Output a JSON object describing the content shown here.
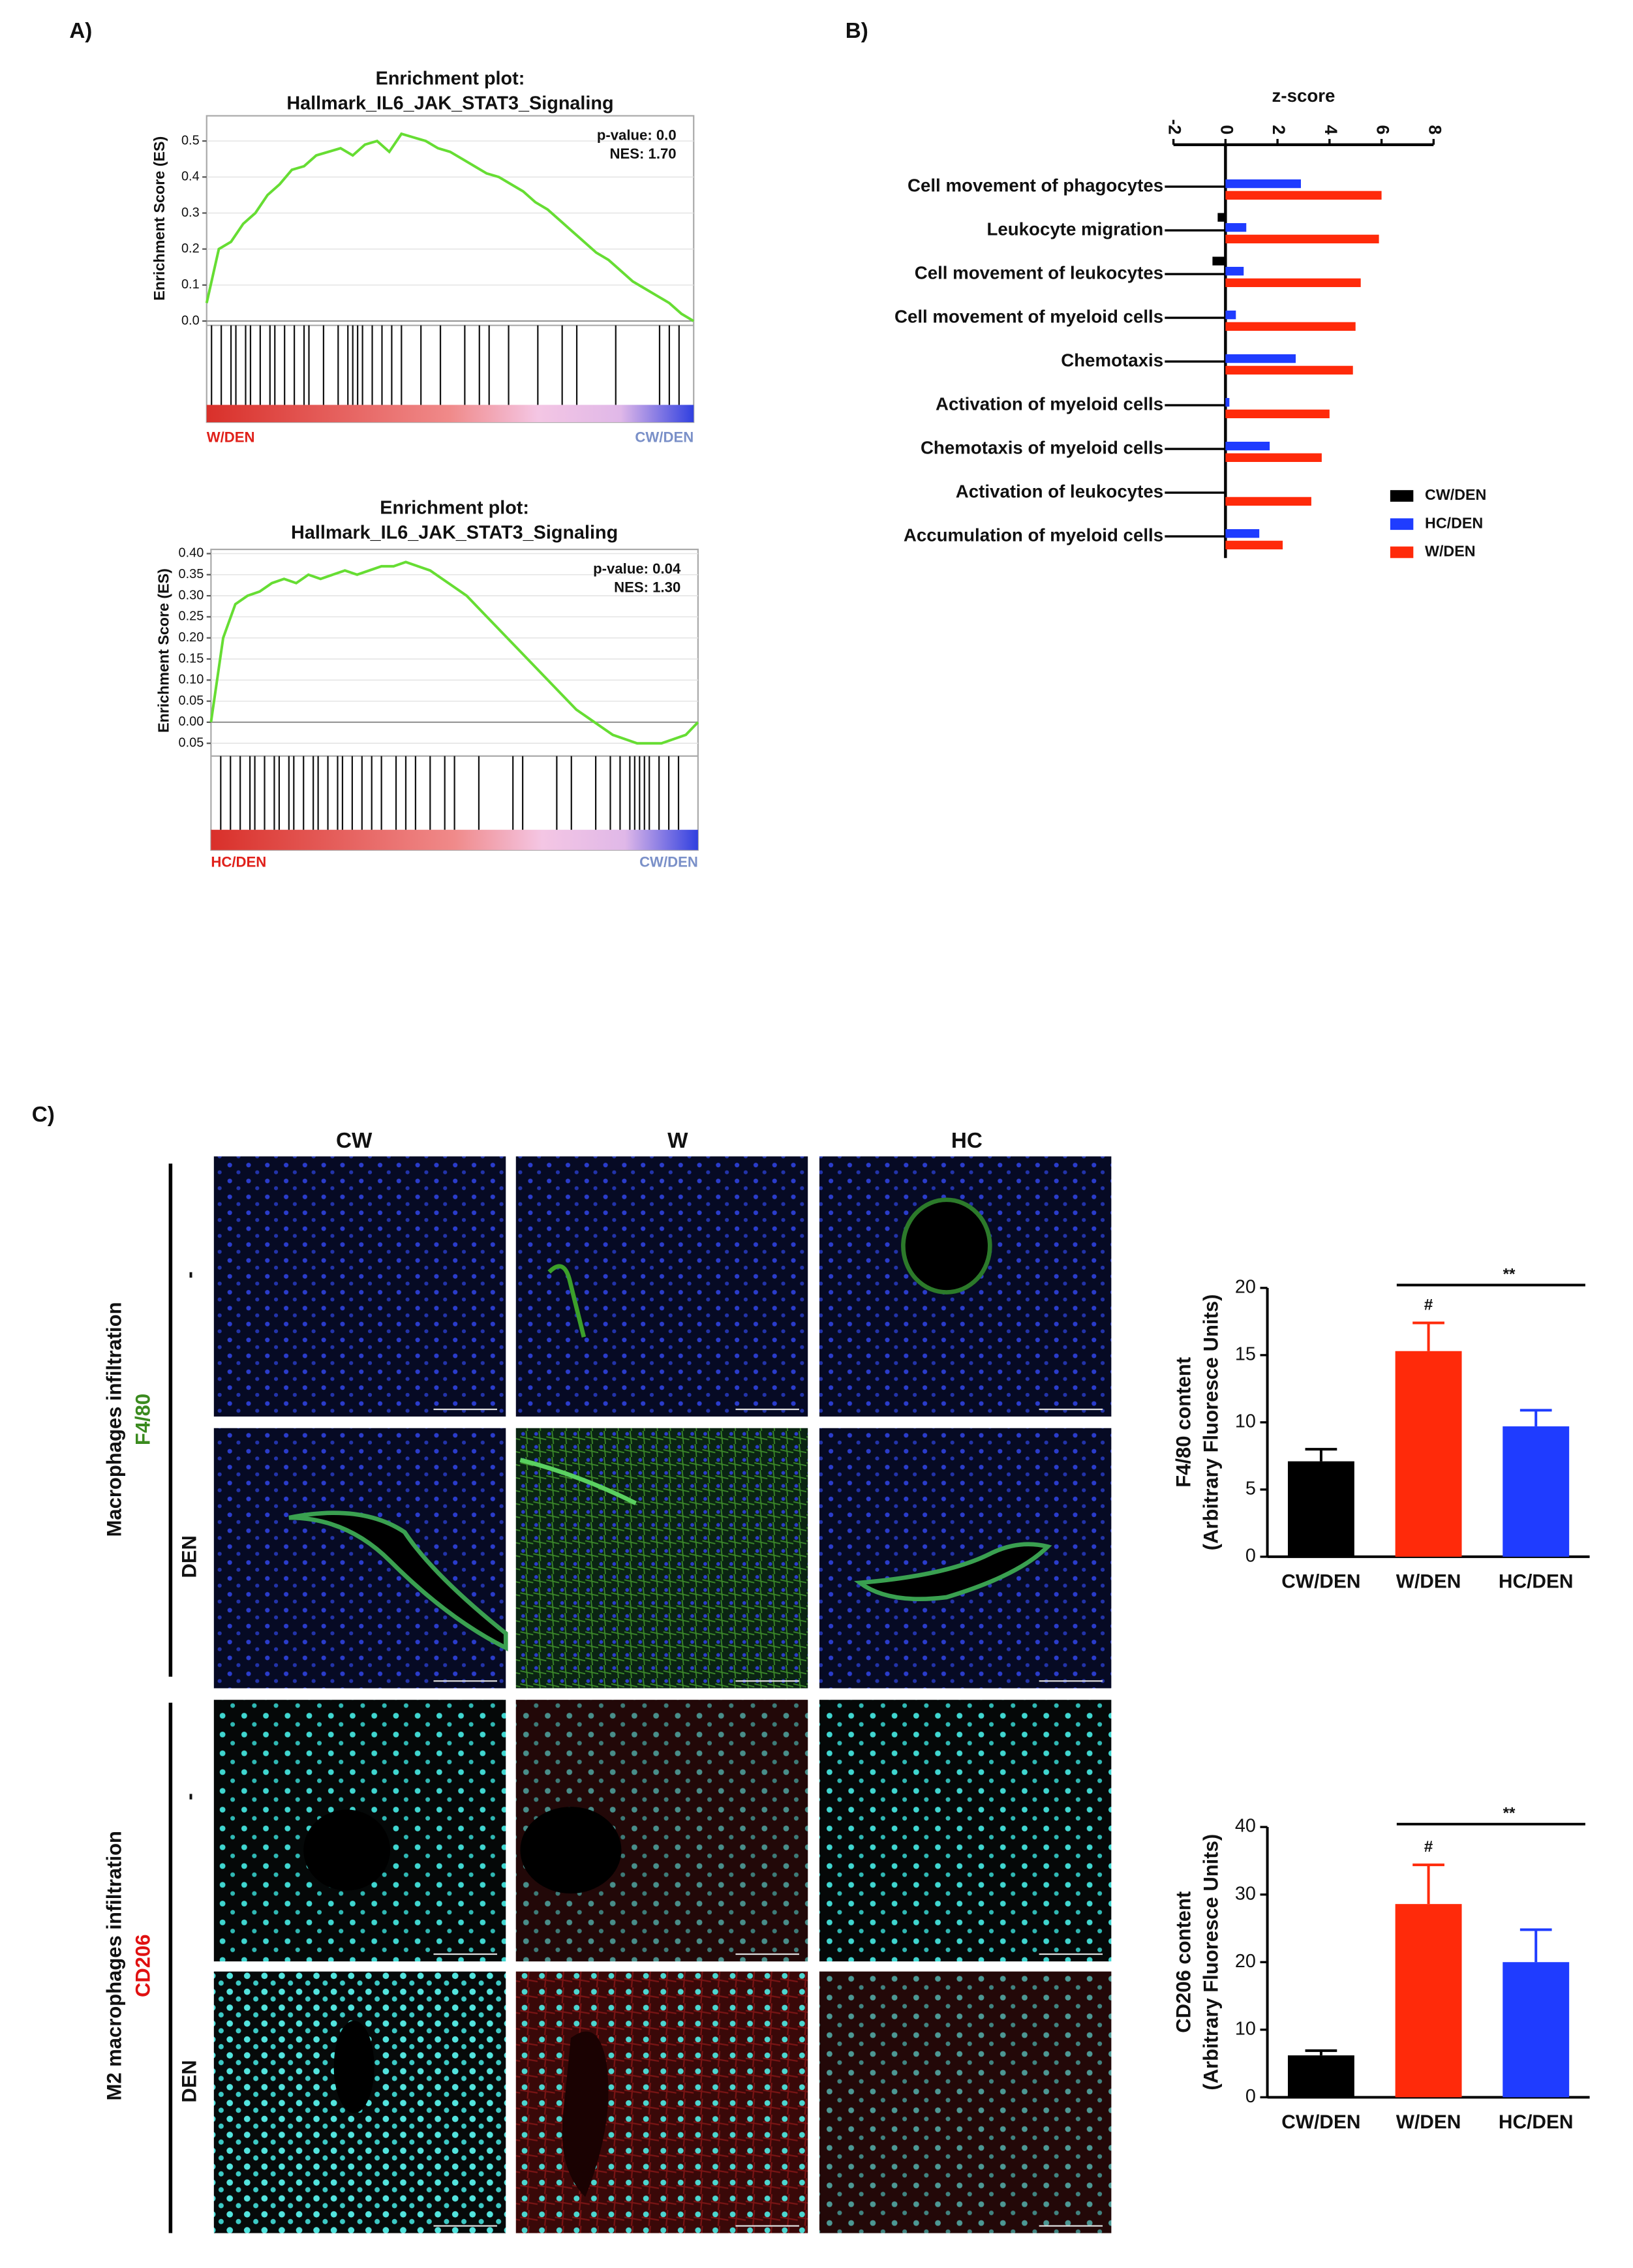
{
  "panels": {
    "a": "A)",
    "b": "B)",
    "c": "C)"
  },
  "images": {
    "columns": [
      "CW",
      "W",
      "HC"
    ],
    "rows": [
      "-",
      "DEN",
      "-",
      "DEN"
    ],
    "groups": [
      {
        "title": "Macrophages infiltration",
        "marker": "F4/80"
      },
      {
        "title": "M2 macrophages infiltration",
        "marker": "CD206"
      }
    ]
  },
  "chart_data": [
    {
      "type": "line",
      "title_lines": [
        "Enrichment plot:",
        "Hallmark_IL6_JAK_STAT3_Signaling"
      ],
      "ylabel": "Enrichment Score (ES)",
      "annotations": [
        "p-value: 0.0",
        "NES: 1.70"
      ],
      "left_label": "W/DEN",
      "right_label": "CW/DEN",
      "color": "#66dd33",
      "ylim": [
        0,
        0.57
      ],
      "yticks": [
        {
          "value": 0,
          "label": "0.0"
        },
        0.1,
        0.2,
        0.3,
        0.4,
        0.5
      ],
      "values": [
        0.05,
        0.2,
        0.22,
        0.27,
        0.3,
        0.35,
        0.38,
        0.42,
        0.43,
        0.46,
        0.47,
        0.48,
        0.46,
        0.49,
        0.5,
        0.47,
        0.52,
        0.51,
        0.5,
        0.48,
        0.47,
        0.45,
        0.43,
        0.41,
        0.4,
        0.38,
        0.36,
        0.33,
        0.31,
        0.28,
        0.25,
        0.22,
        0.19,
        0.17,
        0.14,
        0.11,
        0.09,
        0.07,
        0.05,
        0.02,
        0.0
      ],
      "hits": [
        0.4,
        1.2,
        2,
        2.4,
        3.2,
        3.6,
        4.4,
        5.2,
        5.6,
        6.4,
        7.2,
        8,
        8.4,
        9.6,
        10.8,
        11.6,
        12,
        12.4,
        12.8,
        13.6,
        14.4,
        15.2,
        16,
        17.6,
        19.2,
        21.2,
        22.4,
        23.2,
        24.8,
        27.2,
        29.2,
        30.4,
        33.6,
        37.2,
        38,
        38.8
      ]
    },
    {
      "type": "line",
      "title_lines": [
        "Enrichment plot:",
        "Hallmark_IL6_JAK_STAT3_Signaling"
      ],
      "ylabel": "Enrichment Score (ES)",
      "annotations": [
        "p-value: 0.04",
        "NES: 1.30"
      ],
      "left_label": "HC/DEN",
      "right_label": "CW/DEN",
      "color": "#66dd33",
      "ylim": [
        -0.07,
        0.41
      ],
      "yticks": [
        {
          "value": -0.05,
          "label": "0.05"
        },
        {
          "value": 0,
          "label": "0.00"
        },
        0.05,
        {
          "value": 0.1,
          "label": "0.10"
        },
        0.15,
        {
          "value": 0.2,
          "label": "0.20"
        },
        0.25,
        {
          "value": 0.3,
          "label": "0.30"
        },
        0.35,
        {
          "value": 0.4,
          "label": "0.40"
        }
      ],
      "values": [
        0.0,
        0.2,
        0.28,
        0.3,
        0.31,
        0.33,
        0.34,
        0.33,
        0.35,
        0.34,
        0.35,
        0.36,
        0.35,
        0.36,
        0.37,
        0.37,
        0.38,
        0.37,
        0.36,
        0.34,
        0.32,
        0.3,
        0.27,
        0.24,
        0.21,
        0.18,
        0.15,
        0.12,
        0.09,
        0.06,
        0.03,
        0.01,
        -0.01,
        -0.03,
        -0.04,
        -0.05,
        -0.05,
        -0.05,
        -0.04,
        -0.03,
        0.0
      ],
      "hits": [
        0.8,
        1.6,
        2.4,
        3.2,
        3.6,
        4.4,
        5.2,
        5.6,
        6.4,
        6.8,
        7.6,
        8.4,
        8.8,
        9.6,
        10.4,
        10.8,
        11.6,
        12.4,
        13.2,
        14,
        15.2,
        16,
        16.8,
        18,
        19.2,
        20,
        22,
        24.8,
        25.6,
        28.4,
        29.6,
        31.6,
        32.8,
        33.6,
        34.4,
        34.8,
        35.2,
        35.6,
        36,
        36.8,
        37.6,
        38.4
      ]
    },
    {
      "type": "bar",
      "orientation": "horizontal",
      "title": "z-score",
      "categories": [
        "Cell movement of phagocytes",
        "Leukocyte migration",
        "Cell movement of leukocytes",
        "Cell movement of myeloid cells",
        "Chemotaxis",
        "Activation of myeloid cells",
        "Chemotaxis of myeloid cells",
        "Activation of leukocytes",
        "Accumulation of myeloid cells"
      ],
      "series": [
        {
          "name": "CW/DEN",
          "color": "#000000",
          "values": [
            0,
            -0.3,
            -0.5,
            0,
            0,
            0,
            0,
            0,
            0
          ]
        },
        {
          "name": "HC/DEN",
          "color": "#1f3cff",
          "values": [
            2.9,
            0.8,
            0.7,
            0.4,
            2.7,
            0.15,
            1.7,
            0,
            1.3
          ]
        },
        {
          "name": "W/DEN",
          "color": "#ff2a0a",
          "values": [
            6.0,
            5.9,
            5.2,
            5.0,
            4.9,
            4.0,
            3.7,
            3.3,
            2.2
          ]
        }
      ],
      "xlim": [
        -2,
        8
      ],
      "xticks": [
        -2,
        0,
        2,
        4,
        6,
        8
      ]
    },
    {
      "type": "bar",
      "ylabel_lines": [
        "F4/80 content",
        "(Arbitrary Fluoresce Units)"
      ],
      "categories": [
        "CW/DEN",
        "W/DEN",
        "HC/DEN"
      ],
      "colors": [
        "#000000",
        "#ff2a0a",
        "#1f3cff"
      ],
      "values": [
        7.1,
        15.3,
        9.7
      ],
      "errors": [
        0.9,
        2.1,
        1.2
      ],
      "ylim": [
        0,
        20
      ],
      "yticks": [
        0,
        5,
        10,
        15,
        20
      ],
      "marker_label": "#",
      "significance_label": "**"
    },
    {
      "type": "bar",
      "ylabel_lines": [
        "CD206 content",
        "(Arbitrary Fluoresce Units)"
      ],
      "categories": [
        "CW/DEN",
        "W/DEN",
        "HC/DEN"
      ],
      "colors": [
        "#000000",
        "#ff2a0a",
        "#1f3cff"
      ],
      "values": [
        6.2,
        28.6,
        20.0
      ],
      "errors": [
        0.7,
        5.8,
        4.8
      ],
      "ylim": [
        0,
        40
      ],
      "yticks": [
        0,
        10,
        20,
        30,
        40
      ],
      "marker_label": "#",
      "significance_label": "**"
    }
  ]
}
